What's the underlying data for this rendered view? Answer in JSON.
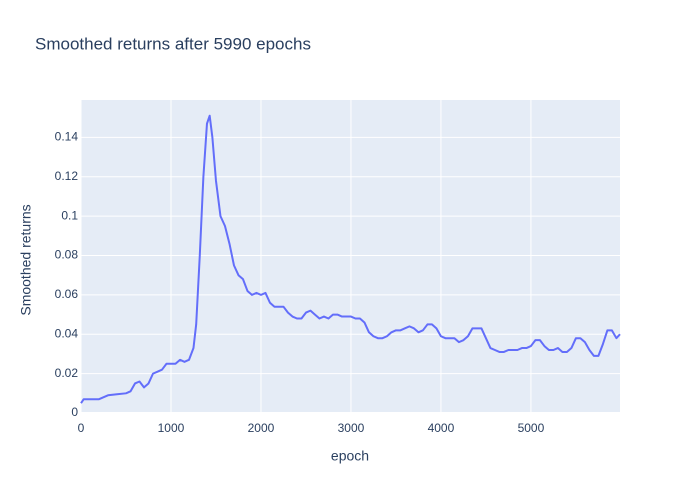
{
  "chart_data": {
    "type": "line",
    "title": "Smoothed returns after 5990 epochs",
    "x_label": "epoch",
    "y_label": "Smoothed returns",
    "x": [
      0,
      30,
      100,
      200,
      300,
      400,
      500,
      550,
      600,
      650,
      700,
      750,
      800,
      850,
      900,
      950,
      1000,
      1050,
      1100,
      1150,
      1200,
      1250,
      1280,
      1320,
      1360,
      1400,
      1430,
      1460,
      1500,
      1550,
      1600,
      1650,
      1700,
      1750,
      1800,
      1850,
      1900,
      1950,
      2000,
      2050,
      2100,
      2150,
      2200,
      2250,
      2300,
      2350,
      2400,
      2450,
      2500,
      2550,
      2600,
      2650,
      2700,
      2750,
      2800,
      2850,
      2900,
      2950,
      3000,
      3050,
      3100,
      3150,
      3200,
      3250,
      3300,
      3350,
      3400,
      3450,
      3500,
      3550,
      3600,
      3650,
      3700,
      3750,
      3800,
      3850,
      3900,
      3950,
      4000,
      4050,
      4100,
      4150,
      4200,
      4250,
      4300,
      4350,
      4400,
      4450,
      4500,
      4550,
      4600,
      4650,
      4700,
      4750,
      4800,
      4850,
      4900,
      4950,
      5000,
      5050,
      5100,
      5150,
      5200,
      5250,
      5300,
      5350,
      5400,
      5450,
      5500,
      5550,
      5600,
      5650,
      5700,
      5750,
      5800,
      5850,
      5900,
      5950,
      5990
    ],
    "series": [
      {
        "name": "Smoothed returns",
        "color": "#636efa",
        "values": [
          0.005,
          0.007,
          0.007,
          0.007,
          0.009,
          0.0095,
          0.01,
          0.011,
          0.015,
          0.016,
          0.013,
          0.015,
          0.02,
          0.021,
          0.022,
          0.025,
          0.025,
          0.025,
          0.027,
          0.026,
          0.027,
          0.033,
          0.045,
          0.08,
          0.12,
          0.147,
          0.151,
          0.14,
          0.118,
          0.1,
          0.095,
          0.086,
          0.075,
          0.07,
          0.068,
          0.062,
          0.06,
          0.061,
          0.06,
          0.061,
          0.056,
          0.054,
          0.054,
          0.054,
          0.051,
          0.049,
          0.048,
          0.048,
          0.051,
          0.052,
          0.05,
          0.048,
          0.049,
          0.048,
          0.05,
          0.05,
          0.049,
          0.049,
          0.049,
          0.048,
          0.048,
          0.046,
          0.041,
          0.039,
          0.038,
          0.038,
          0.039,
          0.041,
          0.042,
          0.042,
          0.043,
          0.044,
          0.043,
          0.041,
          0.042,
          0.045,
          0.045,
          0.043,
          0.039,
          0.038,
          0.038,
          0.038,
          0.036,
          0.037,
          0.039,
          0.043,
          0.043,
          0.043,
          0.038,
          0.033,
          0.032,
          0.031,
          0.031,
          0.032,
          0.032,
          0.032,
          0.033,
          0.033,
          0.034,
          0.037,
          0.037,
          0.034,
          0.032,
          0.032,
          0.033,
          0.031,
          0.031,
          0.033,
          0.038,
          0.038,
          0.036,
          0.032,
          0.029,
          0.029,
          0.035,
          0.042,
          0.042,
          0.038,
          0.04
        ]
      }
    ],
    "xlim": [
      0,
      5990
    ],
    "ylim": [
      0,
      0.159
    ],
    "xticks": [
      0,
      1000,
      2000,
      3000,
      4000,
      5000
    ],
    "yticks": [
      0,
      0.02,
      0.04,
      0.06,
      0.08,
      0.1,
      0.12,
      0.14
    ],
    "grid": true,
    "background": "#e5ecf6"
  }
}
